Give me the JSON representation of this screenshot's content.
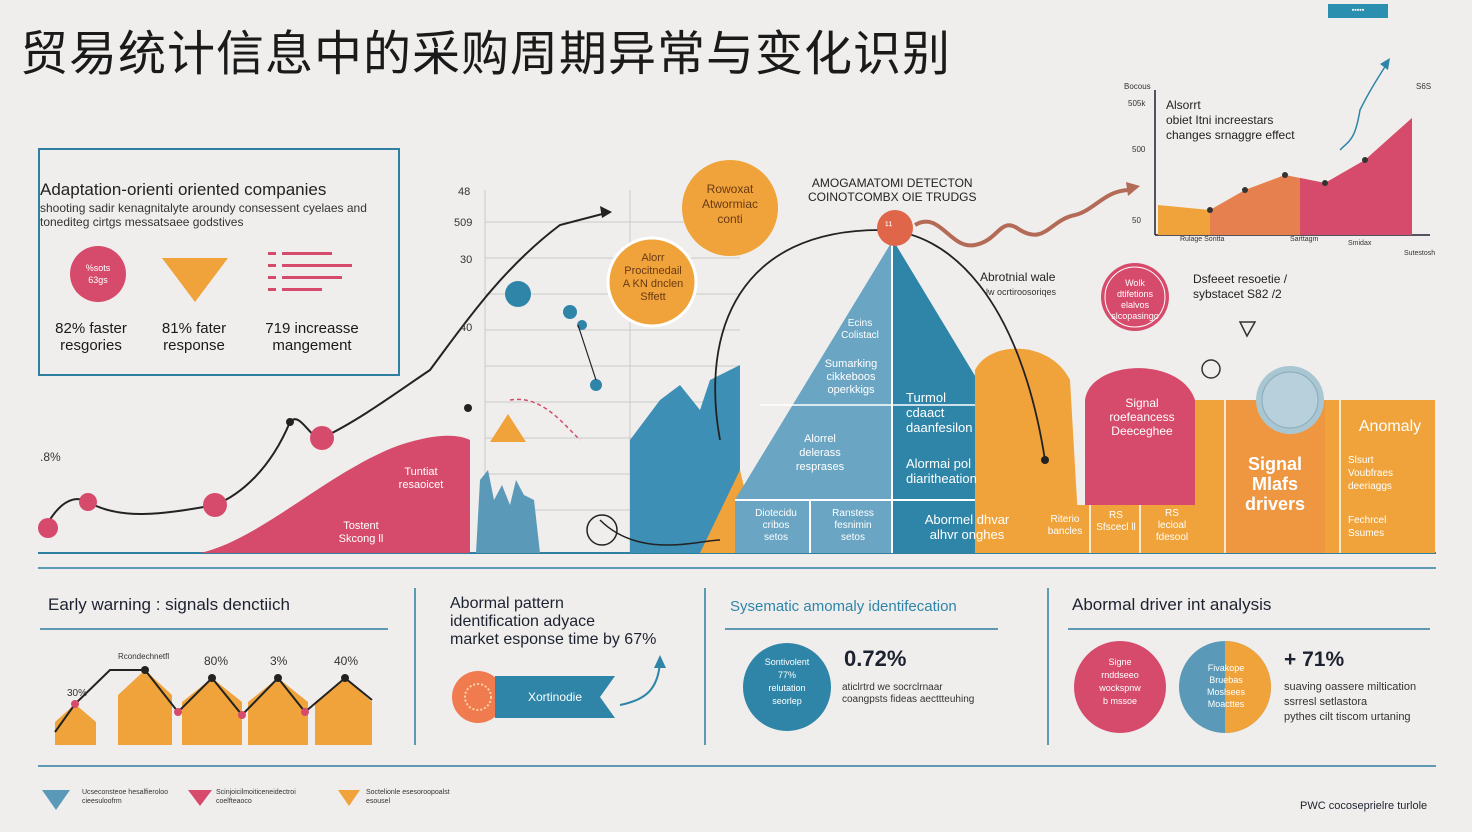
{
  "title": "贸易统计信息中的采购周期异常与变化识别",
  "corner_tag": "▪▪▪▪▪",
  "top_left_panel": {
    "heading": "Adaptation-orienti oriented companies",
    "subtext": "shooting sadir kenagnitalyte aroundy consessent cyelaes and tonediteg cirtgs messatsaee godstives",
    "icon_circle_text": "%sots\n63gs",
    "stats": [
      {
        "value": "82% faster\nresgories"
      },
      {
        "value": "81% fater\nresponse"
      },
      {
        "value": "719 increasse\nmangement"
      }
    ]
  },
  "main_chart": {
    "y_ticks": [
      "48",
      "509",
      "30",
      "40"
    ],
    "left_pct": ".8%",
    "bubble1": "Rowoxat\nAtwormiac\nconti",
    "bubble2": "Alorr\nProcitnedail\nA KN dnclen\nSffett",
    "header": "AMOGAMATOMI DETECTON\nCOINOTCOMBX OIE TRUDGS",
    "peak_label": "¹¹",
    "pink_hill_top": "Tuntiat\nresaoicet",
    "pink_hill_bottom": "Tostent\nSkcong ll",
    "pyramid_top": "Ecins\nColistacl",
    "pyramid_a": "Sumarking\ncikkeboos\noperkkigs",
    "pyramid_b": "Turmol\ncdaact\ndaanfesilon",
    "pyramid_c": "Alorrel\ndelerass\nresprases",
    "pyramid_d": "Alormai pol\ndiaritheation",
    "pyramid_row": [
      "Diotecidu\ncribos\nsetos",
      "Ranstess\nfesnimin\nsetos",
      "Abormel dhvar\nalhvr onghes"
    ],
    "anomaly_ratio_title": "Abrotnial wale",
    "anomaly_ratio_sub": "lw ocrtiroosoriqes",
    "pink_circle_small": "Wolk\ndtifetions\nelalvos\nslcopasingo",
    "detect_label": "Dsfeeet resoetie /\nsybstacet S82 /2",
    "signal_group": "Signal\nroefeancess\nDeeceghee",
    "orange_cells": [
      "Riterio\nbancles",
      "RS\nSfscecl ll",
      "RS\nlecioal\nfdesool"
    ],
    "signal_drivers": "Signal\nMlafs\ndrivers",
    "anomaly_label": "Anomaly",
    "anomaly_sub": "Slsurt\nVoubfraes\ndeeriaggs",
    "anomaly_sub2": "Fechrcel\nSsumes"
  },
  "inset_chart": {
    "y_ticks": [
      "Bocous",
      "505k",
      "500",
      "50"
    ],
    "text": "Alsorrt\nobiet Itni increestars\nchanges srnaggre effect",
    "x_ticks": [
      "Rulage Sontta",
      "Sarttagm",
      "Smidax"
    ],
    "x_label": "Sutestosh",
    "top_right": "S6S"
  },
  "bottom": {
    "sections": [
      {
        "heading": "Early warning : signals denctiich",
        "chart_labels": [
          "Rcondechnetfl",
          "80%",
          "3%",
          "40%"
        ],
        "bar_start_label": "30%"
      },
      {
        "heading": "Abormal pattern\nidentification adyace\nmarket esponse time by 67%",
        "button": "Xortinodie"
      },
      {
        "heading": "Sysematic amomaly identifecation",
        "circle": "Sontivolent\n77%\nrelutation\nseorlep",
        "big_value": "0.72%",
        "desc": "aticlrtrd we socrclrnaar\ncoangpsts fideas aecttteuhing"
      },
      {
        "heading": "Abormal driver int analysis",
        "circle1": "Signe\nrnddseeo\nwockspnw\nb mssoe",
        "circle2": "Fivakope\nBruebas\nMoslsees\nMoacttes",
        "value": "+ 71%",
        "desc": "suaving oassere miltication\nssrresl setlastora\npythes cilt tiscom urtaning"
      }
    ]
  },
  "legend": [
    "Ucseconsteoe hesalfieroloo\ncieesuloofrm",
    "Scinjoicilmoiticeneidectroi\ncoelfteaoco",
    "Soctelionle esesoroopoalst\nesousel"
  ],
  "footer": "PWC cocoseprielre turlole",
  "colors": {
    "pink": "#d64b6b",
    "orange": "#f0a33a",
    "blue": "#2e85a8",
    "teal": "#5a9ab8",
    "navy": "#1d2230",
    "rule": "#2f7fa0"
  }
}
